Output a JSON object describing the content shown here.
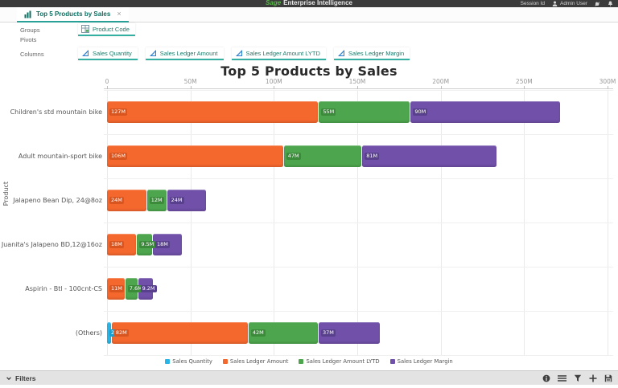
{
  "topbar": {
    "brand_sage": "Sage",
    "brand_rest": "Enterprise Intelligence",
    "session_label": "Session Id",
    "user_label": "Admin User"
  },
  "tab": {
    "label": "Top 5 Products by Sales",
    "close_glyph": "×"
  },
  "builder": {
    "groups_label": "Groups",
    "groups_chips": [
      {
        "label": "Product Code"
      }
    ],
    "pivots_label": "Pivots",
    "columns_label": "Columns",
    "columns_chips": [
      {
        "label": "Sales Quantity"
      },
      {
        "label": "Sales Ledger Amount"
      },
      {
        "label": "Sales Ledger Amount LYTD"
      },
      {
        "label": "Sales Ledger Margin"
      }
    ]
  },
  "chart_data": {
    "type": "bar",
    "orientation": "horizontal",
    "stacked": true,
    "title": "Top 5 Products by Sales",
    "xlabel": "",
    "ylabel": "Product",
    "unit": "M",
    "xlim": [
      0,
      300
    ],
    "grid": true,
    "legend_position": "bottom",
    "x_tick_labels": [
      "0",
      "50M",
      "100M",
      "150M",
      "200M",
      "250M",
      "300M"
    ],
    "x_tick_values": [
      0,
      50,
      100,
      150,
      200,
      250,
      300
    ],
    "categories": [
      "Children's std mountain bike",
      "Adult mountain-sport bike",
      "Jalapeno Bean Dip, 24@8oz",
      "Juanita's Jalapeno BD,12@16oz",
      "Aspirin - Btl - 100cnt-CS",
      "(Others)"
    ],
    "series": [
      {
        "name": "Sales Quantity",
        "color": "#29b5e6",
        "label_color": "#189fd2",
        "values": [
          0,
          0,
          0,
          0,
          0,
          2.82
        ],
        "labels": [
          "",
          "",
          "",
          "",
          "",
          "2.82M"
        ]
      },
      {
        "name": "Sales Ledger Amount",
        "color": "#f4682e",
        "label_color": "#d9551f",
        "values": [
          127,
          106,
          24,
          18,
          11,
          82
        ],
        "labels": [
          "127M",
          "106M",
          "24M",
          "18M",
          "11M",
          "82M"
        ]
      },
      {
        "name": "Sales Ledger Amount LYTD",
        "color": "#4da54d",
        "label_color": "#3b8b3b",
        "values": [
          55,
          47,
          12,
          9.5,
          7.6,
          42
        ],
        "labels": [
          "55M",
          "47M",
          "12M",
          "9.5M",
          "7.6M",
          "42M"
        ]
      },
      {
        "name": "Sales Ledger Margin",
        "color": "#7050a8",
        "label_color": "#59408c",
        "values": [
          90,
          81,
          24,
          18,
          9.2,
          37
        ],
        "labels": [
          "90M",
          "81M",
          "24M",
          "18M",
          "9.2M",
          "37M"
        ]
      }
    ]
  },
  "filters_bar": {
    "label": "Filters"
  }
}
